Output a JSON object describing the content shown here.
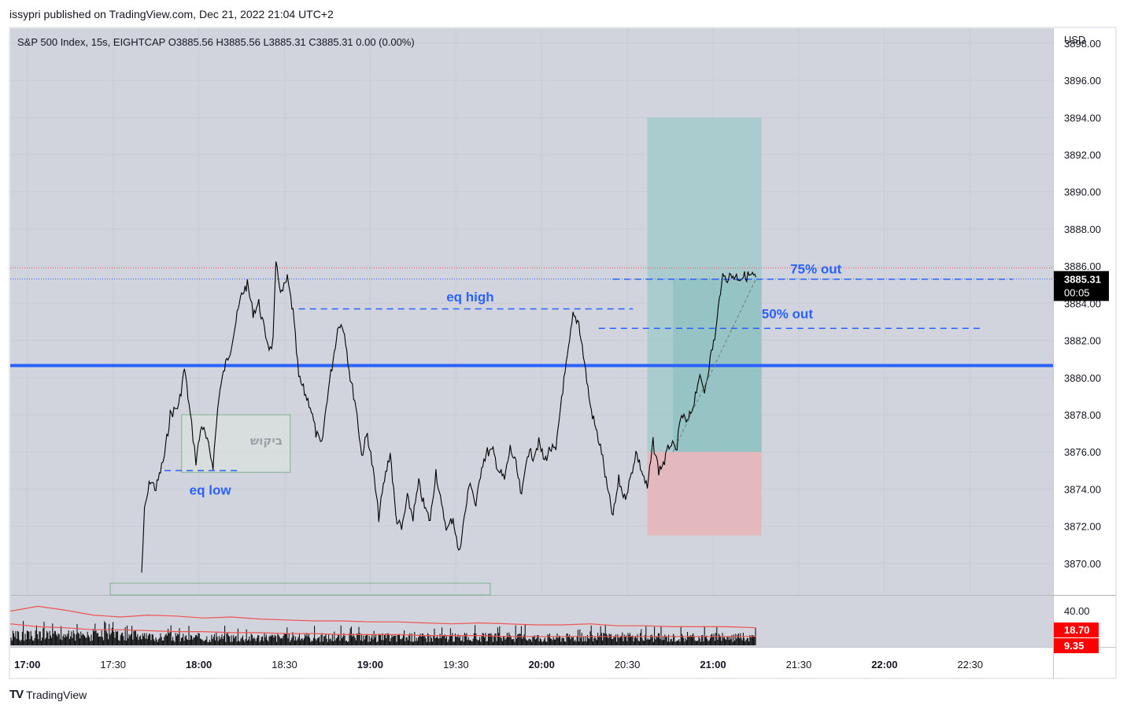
{
  "header": {
    "publish_line": "issypri published on TradingView.com, Dec 21, 2022 21:04 UTC+2"
  },
  "legend": {
    "text": "S&P 500 Index, 15s, EIGHTCAP  O3885.56  H3885.56  L3885.31  C3885.31  0.00 (0.00%)"
  },
  "footer": {
    "brand": "TradingView",
    "logo": "TV"
  },
  "colors": {
    "plot_bg": "#d1d4dc",
    "price_line": "#000000",
    "level_line": "#2962ff",
    "annotation": "#2962ff",
    "target_zone": "#9ec9c9",
    "stop_zone": "#e8b4b8",
    "vol_ma": "#ef5350",
    "last_price_badge": "#000000",
    "indicator_badge": "#ff0000"
  },
  "chart_data": {
    "type": "line",
    "title": "S&P 500 Index, 15s, EIGHTCAP",
    "currency": "USD",
    "x_ticks": [
      {
        "t": "17:00",
        "bold": true
      },
      {
        "t": "17:30",
        "bold": false
      },
      {
        "t": "18:00",
        "bold": true
      },
      {
        "t": "18:30",
        "bold": false
      },
      {
        "t": "19:00",
        "bold": true
      },
      {
        "t": "19:30",
        "bold": false
      },
      {
        "t": "20:00",
        "bold": true
      },
      {
        "t": "20:30",
        "bold": false
      },
      {
        "t": "21:00",
        "bold": true
      },
      {
        "t": "21:30",
        "bold": false
      },
      {
        "t": "22:00",
        "bold": true
      },
      {
        "t": "22:30",
        "bold": false
      }
    ],
    "x_range_minutes": [
      -6,
      359
    ],
    "y_ticks": [
      "3898.00",
      "3896.00",
      "3894.00",
      "3892.00",
      "3890.00",
      "3888.00",
      "3886.00",
      "3884.00",
      "3882.00",
      "3880.00",
      "3878.00",
      "3876.00",
      "3874.00",
      "3872.00",
      "3870.00"
    ],
    "ylim": [
      3868.3,
      3898.8
    ],
    "price_series": {
      "minutes": [
        40,
        41,
        43,
        45,
        47,
        48,
        50,
        53,
        55,
        57,
        58,
        59,
        61,
        63,
        65,
        67,
        69,
        71,
        73,
        75,
        77,
        79,
        81,
        83,
        85,
        86,
        87,
        89,
        91,
        93,
        95,
        97,
        99,
        101,
        103,
        105,
        107,
        109,
        111,
        113,
        115,
        117,
        119,
        121,
        123,
        125,
        127,
        129,
        131,
        133,
        135,
        137,
        139,
        141,
        143,
        145,
        147,
        149,
        151,
        153,
        155,
        157,
        159,
        161,
        163,
        165,
        167,
        169,
        171,
        173,
        175,
        177,
        179,
        181,
        183,
        185,
        187,
        189,
        191,
        193,
        195,
        197,
        199,
        201,
        203,
        205,
        207,
        209,
        211,
        213,
        215,
        217,
        219,
        221,
        223,
        225,
        227,
        229,
        231,
        233,
        235,
        237,
        239,
        241,
        243,
        245,
        247,
        249,
        251,
        253,
        255,
        257,
        259,
        261,
        263,
        265,
        267,
        269,
        271,
        273,
        275,
        277,
        279,
        281,
        283,
        285,
        287,
        289,
        291,
        293,
        295,
        297,
        299,
        301,
        303,
        305,
        307,
        309,
        311,
        313,
        314
      ],
      "values": [
        3869.5,
        3872.8,
        3874.5,
        3874.0,
        3875.2,
        3875.8,
        3878.0,
        3878.5,
        3880.5,
        3878.0,
        3876.8,
        3875.5,
        3877.5,
        3876.5,
        3875.3,
        3879.0,
        3880.5,
        3881.5,
        3883.0,
        3884.5,
        3885.0,
        3883.5,
        3884.0,
        3882.5,
        3881.5,
        3882.0,
        3886.0,
        3884.5,
        3885.3,
        3883.5,
        3880.0,
        3879.2,
        3878.5,
        3877.0,
        3876.3,
        3879.0,
        3881.0,
        3883.0,
        3882.5,
        3880.0,
        3878.5,
        3875.8,
        3877.0,
        3875.0,
        3872.5,
        3874.5,
        3876.0,
        3872.5,
        3871.8,
        3873.5,
        3872.5,
        3874.3,
        3873.0,
        3872.3,
        3875.0,
        3873.0,
        3871.8,
        3872.5,
        3870.5,
        3872.5,
        3874.5,
        3873.0,
        3875.3,
        3876.0,
        3876.0,
        3875.0,
        3874.5,
        3876.2,
        3875.3,
        3873.5,
        3876.0,
        3875.8,
        3876.5,
        3875.5,
        3876.2,
        3876.0,
        3879.0,
        3881.0,
        3883.3,
        3883.0,
        3880.8,
        3878.5,
        3877.2,
        3876.0,
        3874.0,
        3872.5,
        3874.5,
        3873.5,
        3874.5,
        3876.0,
        3875.0,
        3874.0,
        3876.5,
        3875.0,
        3875.5,
        3876.5,
        3876.0,
        3878.0,
        3877.5,
        3878.5,
        3880.0,
        3879.3,
        3881.0,
        3882.5,
        3885.3,
        3885.4,
        3885.5,
        3885.4,
        3885.45,
        3885.5,
        3885.4,
        3885.45,
        3885.5,
        3885.4,
        3885.45,
        3885.5,
        3885.4,
        3885.45,
        3885.5,
        3885.4,
        3885.45,
        3885.5,
        3885.4,
        3885.45,
        3885.5,
        3885.4,
        3885.45,
        3885.5,
        3885.4,
        3885.45,
        3885.5,
        3885.4,
        3885.45,
        3885.5,
        3885.4,
        3885.45,
        3885.5,
        3885.4,
        3885.45,
        3885.5,
        3885.31
      ],
      "last_minute": 255,
      "series_end_minute": 255
    },
    "horizontal_levels": [
      {
        "name": "key-level",
        "price": 3880.65,
        "x0_minute": -6,
        "x1_minute": 359,
        "style": "solid"
      }
    ],
    "dashed_levels": [
      {
        "name": "eq-high-line",
        "price": 3883.7,
        "x0_minute": 95,
        "x1_minute": 212
      },
      {
        "name": "eq-low-line",
        "price": 3875.0,
        "x0_minute": 48,
        "x1_minute": 74
      },
      {
        "name": "50-out-line",
        "price": 3882.65,
        "x0_minute": 200,
        "x1_minute": 335
      },
      {
        "name": "75-out-line",
        "price": 3885.3,
        "x0_minute": 205,
        "x1_minute": 345
      }
    ],
    "annotations": [
      {
        "name": "eq-high-label",
        "text": "eq high",
        "minute": 155,
        "price": 3884.1
      },
      {
        "name": "eq-low-label",
        "text": "eq low",
        "minute": 64,
        "price": 3873.7
      },
      {
        "name": "50-out-label",
        "text": "50% out",
        "minute": 266,
        "price": 3883.2
      },
      {
        "name": "75-out-label",
        "text": "75% out",
        "minute": 276,
        "price": 3885.6
      }
    ],
    "position_tool": {
      "x0_minute": 217,
      "x1_minute": 257,
      "x_entry_minute": 226,
      "target_price": 3894.0,
      "entry_price": 3876.0,
      "stop_price": 3871.5
    },
    "boxes": [
      {
        "name": "demand-box",
        "x0_minute": 54,
        "x1_minute": 92,
        "price_top": 3878.0,
        "price_bottom": 3874.9,
        "label": "ביקוש"
      },
      {
        "name": "lower-box",
        "x0_minute": 29,
        "x1_minute": 162,
        "price_top": 3868.3,
        "price_bottom": 3868.3
      }
    ],
    "price_badge": {
      "price": "3885.31",
      "countdown": "00:05"
    },
    "volume": {
      "y_ticks": [
        "40.00"
      ],
      "badges": [
        {
          "label": "18.70",
          "color": "#ff0000"
        },
        {
          "label": "9.35",
          "color": "#ff0000"
        }
      ],
      "ma_values": [
        35,
        40,
        36,
        31,
        29,
        31,
        30,
        28,
        29,
        27,
        26,
        25,
        25,
        24,
        24,
        23,
        22,
        23,
        22,
        21,
        21,
        22,
        20,
        20,
        19,
        19,
        19,
        18
      ],
      "ma_line2": [
        22,
        19,
        18,
        16,
        16,
        15,
        14,
        14,
        13,
        13,
        12,
        12,
        11,
        11,
        11,
        10,
        10,
        10,
        9,
        9,
        9,
        9,
        9,
        9,
        9,
        9,
        9,
        9
      ]
    }
  }
}
